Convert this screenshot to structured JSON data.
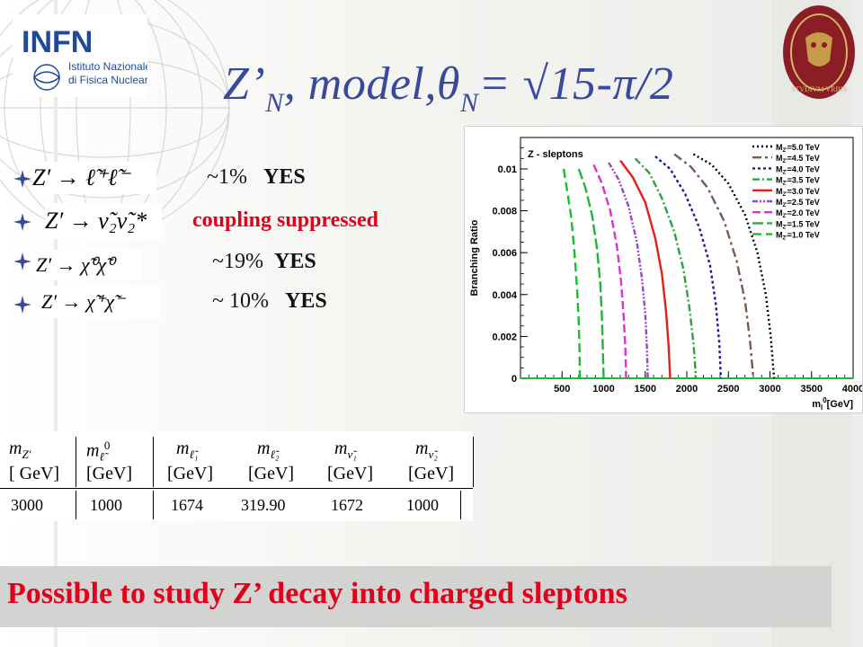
{
  "slide": {
    "title_main": "Z’",
    "title_sub": "N",
    "title_rest": ",    model,θ",
    "title_sub2": "N",
    "title_eq": "= √15-π/2",
    "logo": {
      "name": "INFN",
      "line1": "Istituto Nazionale",
      "line2": "di Fisica Nucleare"
    },
    "seal_text": "STVDIVM VRBIS"
  },
  "decays": [
    {
      "formula": "Z′ → ℓ̃⁺ℓ̃⁻",
      "result_pct": "~1%",
      "result_flag": "YES",
      "style": "normal"
    },
    {
      "formula": "Z′ → ν̃₂ν̃₂*",
      "result_pct": "",
      "result_flag": "coupling suppressed",
      "style": "red"
    },
    {
      "formula": "Z′ → χ̃⁰χ̃⁰",
      "result_pct": "~19%",
      "result_flag": "YES",
      "style": "normal"
    },
    {
      "formula": "Z′ → χ̃⁺χ̃⁻",
      "result_pct": "~ 10%",
      "result_flag": "YES",
      "style": "normal"
    }
  ],
  "table": {
    "headers": [
      "m",
      "m",
      "m",
      "m",
      "m",
      "m"
    ],
    "header_subs": [
      "Z′",
      "ℓ̃",
      "ℓ̃₁",
      "ℓ̃₂",
      "ν̃₁",
      "ν̃₂"
    ],
    "header_sup": "0",
    "units": [
      "[ GeV]",
      "[GeV]",
      "[GeV]",
      "[GeV]",
      "[GeV]",
      "[GeV]"
    ],
    "values": [
      "3000",
      "1000",
      "1674",
      "319.90",
      "1672",
      "1000"
    ]
  },
  "banner": "Possible to study Z’ decay into charged  sleptons",
  "chart_data": {
    "type": "line",
    "title": "Z - sleptons",
    "xlabel": "m",
    "xlabel_sub": "l",
    "xlabel_sup": "0",
    "xlabel_unit": "[GeV]",
    "ylabel": "Branching Ratio",
    "xlim": [
      0,
      4000
    ],
    "ylim": [
      0,
      0.0115
    ],
    "xticks": [
      500,
      1000,
      1500,
      2000,
      2500,
      3000,
      3500,
      4000
    ],
    "yticks": [
      0,
      0.002,
      0.004,
      0.006,
      0.008,
      0.01
    ],
    "ytick_labels": [
      "0",
      "0.002",
      "0.004",
      "0.006",
      "0.008",
      "0.01"
    ],
    "legend_position": "top-right",
    "legend_prefix": "M",
    "legend_sub": "Z'",
    "series": [
      {
        "name": "=5.0 TeV",
        "color": "#000000",
        "dash": "2,3",
        "x": [
          2080,
          2300,
          2500,
          2700,
          2850,
          2950,
          3010,
          3050
        ],
        "y": [
          0.0107,
          0.0102,
          0.0093,
          0.0078,
          0.006,
          0.004,
          0.002,
          0.0
        ]
      },
      {
        "name": "=4.5 TeV",
        "color": "#7a5a4a",
        "dash": "10,4,3,4",
        "x": [
          1850,
          2050,
          2250,
          2450,
          2600,
          2700,
          2760,
          2800
        ],
        "y": [
          0.0107,
          0.0101,
          0.0091,
          0.0075,
          0.0056,
          0.0037,
          0.0018,
          0.0
        ]
      },
      {
        "name": "=4.0 TeV",
        "color": "#1a1aa0",
        "dash": "3,3",
        "x": [
          1620,
          1800,
          1980,
          2150,
          2280,
          2350,
          2390,
          2410
        ],
        "y": [
          0.0106,
          0.01,
          0.0088,
          0.0072,
          0.0054,
          0.0035,
          0.0017,
          0.0
        ]
      },
      {
        "name": "=3.5 TeV",
        "color": "#2aa33a",
        "dash": "8,3,2,3",
        "x": [
          1380,
          1550,
          1700,
          1850,
          1960,
          2030,
          2080,
          2110
        ],
        "y": [
          0.0105,
          0.0098,
          0.0086,
          0.007,
          0.0052,
          0.0034,
          0.0017,
          0.0
        ]
      },
      {
        "name": "=3.0 TeV",
        "color": "#e0201a",
        "dash": "",
        "x": [
          1200,
          1350,
          1500,
          1620,
          1700,
          1750,
          1780,
          1800
        ],
        "y": [
          0.0104,
          0.0096,
          0.0084,
          0.0067,
          0.005,
          0.0032,
          0.0016,
          0.0
        ]
      },
      {
        "name": "=2.5 TeV",
        "color": "#9a44c8",
        "dash": "6,2,2,2,2,2",
        "x": [
          1060,
          1180,
          1300,
          1400,
          1460,
          1500,
          1520,
          1530
        ],
        "y": [
          0.0103,
          0.0095,
          0.0082,
          0.0065,
          0.0048,
          0.0031,
          0.0015,
          0.0
        ]
      },
      {
        "name": "=2.0 TeV",
        "color": "#e030d0",
        "dash": "9,4",
        "x": [
          880,
          980,
          1080,
          1160,
          1210,
          1240,
          1260,
          1270
        ],
        "y": [
          0.0102,
          0.0093,
          0.008,
          0.0063,
          0.0046,
          0.003,
          0.0015,
          0.0
        ]
      },
      {
        "name": "=1.5 TeV",
        "color": "#22b43a",
        "dash": "12,4",
        "x": [
          700,
          780,
          860,
          920,
          960,
          980,
          990,
          1000
        ],
        "y": [
          0.01,
          0.0091,
          0.0078,
          0.0062,
          0.0045,
          0.0029,
          0.0014,
          0.0
        ]
      },
      {
        "name": "=1.0 TeV",
        "color": "#10c22a",
        "dash": "10,5",
        "x": [
          520,
          560,
          610,
          650,
          680,
          700,
          710,
          715
        ],
        "y": [
          0.01,
          0.009,
          0.0077,
          0.006,
          0.0043,
          0.0027,
          0.0013,
          0.0
        ]
      }
    ]
  }
}
